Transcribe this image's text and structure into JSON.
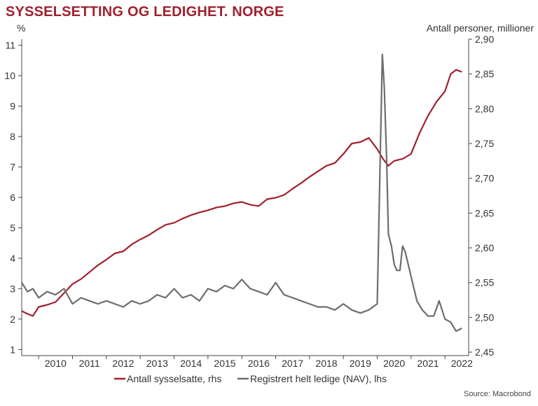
{
  "title": "SYSSELSETTING OG LEDIGHET. NORGE",
  "left_unit": "%",
  "right_unit": "Antall personer, millioner",
  "source": "Source: Macrobond",
  "colors": {
    "employed": "#a0212e",
    "unemployed": "#6d6d6d",
    "title": "#a0212e",
    "axis": "#444444"
  },
  "chart_data": {
    "type": "line",
    "title": "SYSSELSETTING OG LEDIGHET. NORGE",
    "x_ticks": [
      "2010",
      "2011",
      "2012",
      "2013",
      "2014",
      "2015",
      "2016",
      "2017",
      "2018",
      "2019",
      "2020",
      "2021",
      "2022"
    ],
    "x_range": [
      2009.5,
      2022.7
    ],
    "left_axis": {
      "label": "%",
      "ylim": [
        0.8,
        11.2
      ],
      "ticks": [
        "1",
        "2",
        "3",
        "4",
        "5",
        "6",
        "7",
        "8",
        "9",
        "10",
        "11"
      ]
    },
    "right_axis": {
      "label": "Antall personer, millioner",
      "ylim": [
        2.445,
        2.9
      ],
      "ticks": [
        "2,45",
        "2,50",
        "2,55",
        "2,60",
        "2,65",
        "2,70",
        "2,75",
        "2,80",
        "2,85",
        "2,90"
      ]
    },
    "legend": {
      "position": "bottom"
    },
    "series": [
      {
        "name": "Antall sysselsatte, rhs",
        "axis": "right",
        "x": [
          2009.5,
          2009.67,
          2009.83,
          2010.0,
          2010.25,
          2010.5,
          2010.75,
          2011.0,
          2011.25,
          2011.5,
          2011.75,
          2012.0,
          2012.25,
          2012.5,
          2012.75,
          2013.0,
          2013.25,
          2013.5,
          2013.75,
          2014.0,
          2014.25,
          2014.5,
          2014.75,
          2015.0,
          2015.25,
          2015.5,
          2015.75,
          2016.0,
          2016.25,
          2016.5,
          2016.75,
          2017.0,
          2017.25,
          2017.5,
          2017.75,
          2018.0,
          2018.25,
          2018.5,
          2018.75,
          2019.0,
          2019.25,
          2019.5,
          2019.75,
          2020.0,
          2020.17,
          2020.33,
          2020.5,
          2020.75,
          2021.0,
          2021.25,
          2021.5,
          2021.75,
          2022.0,
          2022.17,
          2022.33,
          2022.5
        ],
        "values": [
          2.509,
          2.505,
          2.502,
          2.515,
          2.518,
          2.522,
          2.535,
          2.548,
          2.555,
          2.565,
          2.575,
          2.583,
          2.592,
          2.595,
          2.605,
          2.612,
          2.618,
          2.626,
          2.633,
          2.636,
          2.642,
          2.647,
          2.651,
          2.654,
          2.658,
          2.66,
          2.664,
          2.666,
          2.662,
          2.66,
          2.67,
          2.672,
          2.676,
          2.685,
          2.693,
          2.702,
          2.71,
          2.718,
          2.722,
          2.735,
          2.75,
          2.752,
          2.758,
          2.742,
          2.728,
          2.718,
          2.725,
          2.728,
          2.735,
          2.765,
          2.79,
          2.81,
          2.825,
          2.85,
          2.856,
          2.853
        ]
      },
      {
        "name": "Registrert helt ledige (NAV), lhs",
        "axis": "left",
        "x": [
          2009.5,
          2009.67,
          2009.83,
          2010.0,
          2010.25,
          2010.5,
          2010.75,
          2011.0,
          2011.25,
          2011.5,
          2011.75,
          2012.0,
          2012.25,
          2012.5,
          2012.75,
          2013.0,
          2013.25,
          2013.5,
          2013.75,
          2014.0,
          2014.25,
          2014.5,
          2014.75,
          2015.0,
          2015.25,
          2015.5,
          2015.75,
          2016.0,
          2016.25,
          2016.5,
          2016.75,
          2017.0,
          2017.25,
          2017.5,
          2017.75,
          2018.0,
          2018.25,
          2018.5,
          2018.75,
          2019.0,
          2019.25,
          2019.5,
          2019.75,
          2020.0,
          2020.15,
          2020.21,
          2020.28,
          2020.33,
          2020.42,
          2020.5,
          2020.58,
          2020.67,
          2020.75,
          2020.83,
          2021.0,
          2021.17,
          2021.33,
          2021.5,
          2021.67,
          2021.83,
          2022.0,
          2022.17,
          2022.33,
          2022.5
        ],
        "values": [
          3.2,
          2.9,
          3.0,
          2.7,
          2.9,
          2.8,
          3.0,
          2.5,
          2.7,
          2.6,
          2.5,
          2.6,
          2.5,
          2.4,
          2.6,
          2.5,
          2.6,
          2.8,
          2.7,
          3.0,
          2.7,
          2.8,
          2.6,
          3.0,
          2.9,
          3.1,
          3.0,
          3.3,
          3.0,
          2.9,
          2.8,
          3.2,
          2.8,
          2.7,
          2.6,
          2.5,
          2.4,
          2.4,
          2.3,
          2.5,
          2.3,
          2.2,
          2.3,
          2.5,
          10.7,
          9.6,
          7.2,
          4.8,
          4.4,
          3.8,
          3.6,
          3.6,
          4.4,
          4.2,
          3.4,
          2.6,
          2.3,
          2.1,
          2.1,
          2.6,
          2.0,
          1.9,
          1.6,
          1.7
        ]
      }
    ]
  }
}
